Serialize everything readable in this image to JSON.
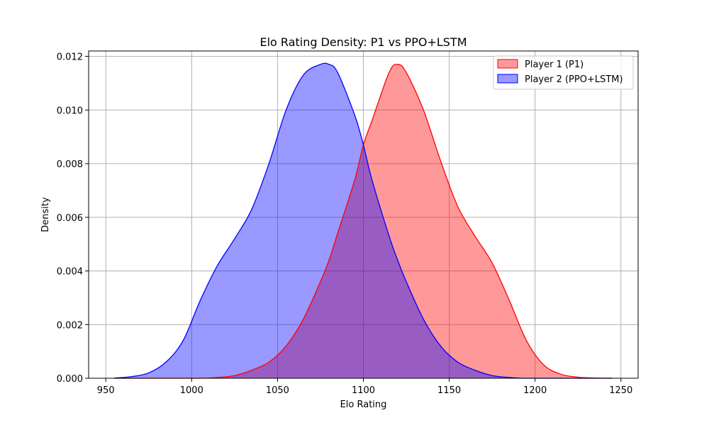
{
  "chart_data": {
    "type": "area",
    "title": "Elo Rating Density: P1 vs PPO+LSTM",
    "xlabel": "Elo Rating",
    "ylabel": "Density",
    "xlim": [
      940,
      1260
    ],
    "ylim": [
      0,
      0.0122
    ],
    "grid": true,
    "legend_position": "top-right",
    "x_ticks": [
      950,
      1000,
      1050,
      1100,
      1150,
      1200,
      1250
    ],
    "y_ticks": [
      0.0,
      0.002,
      0.004,
      0.006,
      0.008,
      0.01,
      0.012
    ],
    "x_tick_labels": [
      "950",
      "1000",
      "1050",
      "1100",
      "1150",
      "1200",
      "1250"
    ],
    "y_tick_labels": [
      "0.000",
      "0.002",
      "0.004",
      "0.006",
      "0.008",
      "0.010",
      "0.012"
    ],
    "x": [
      955,
      965,
      975,
      985,
      995,
      1005,
      1015,
      1025,
      1035,
      1045,
      1055,
      1065,
      1075,
      1080,
      1085,
      1095,
      1100,
      1105,
      1115,
      1120,
      1125,
      1135,
      1145,
      1155,
      1165,
      1175,
      1185,
      1195,
      1205,
      1215,
      1225,
      1235,
      1245
    ],
    "series": [
      {
        "name": "Player 1 (P1)",
        "color": "#ff0000",
        "fill": "#ff9999",
        "values": [
          0.0,
          0.0,
          0.0,
          0.0,
          0.0,
          0.0,
          3e-05,
          0.0001,
          0.0003,
          0.0006,
          0.0012,
          0.0022,
          0.0036,
          0.0044,
          0.0054,
          0.0074,
          0.0087,
          0.0096,
          0.0114,
          0.0117,
          0.0114,
          0.01,
          0.0081,
          0.0064,
          0.0053,
          0.0043,
          0.0029,
          0.0014,
          0.0005,
          0.00015,
          4e-05,
          1e-05,
          0.0
        ]
      },
      {
        "name": "Player 2 (PPO+LSTM)",
        "color": "#0000ff",
        "fill": "#9999ff",
        "values": [
          1e-05,
          6e-05,
          0.0002,
          0.0006,
          0.0014,
          0.0029,
          0.0042,
          0.0052,
          0.0063,
          0.008,
          0.01,
          0.0113,
          0.0117,
          0.0117,
          0.0114,
          0.0098,
          0.0087,
          0.0074,
          0.0053,
          0.0044,
          0.0036,
          0.0022,
          0.0012,
          0.0006,
          0.0003,
          0.0001,
          3e-05,
          0.0,
          0.0,
          0.0,
          0.0,
          0.0,
          0.0
        ]
      }
    ],
    "overlap_color": "#9955c4"
  }
}
